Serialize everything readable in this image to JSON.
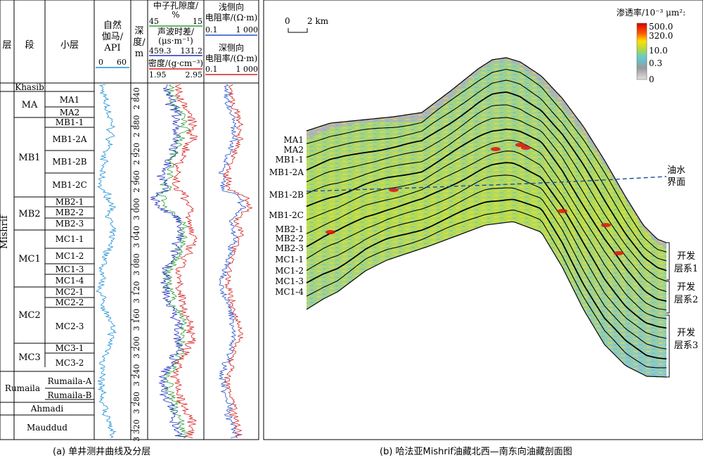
{
  "panel_a": {
    "caption": "(a) 单井测井曲线及分层",
    "headers": {
      "formation": "层",
      "member": "段",
      "sublayer": "小层",
      "gr_line1": "自然",
      "gr_line2": "伽马/",
      "gr_line3": "API",
      "gr_min": "0",
      "gr_max": "60",
      "depth_line1": "深",
      "depth_line2": "度/",
      "depth_line3": "m",
      "neutron_title": "中子孔隙度/",
      "neutron_unit": "%",
      "neutron_min": "45",
      "neutron_max": "15",
      "sonic_title": "声波时差/",
      "sonic_unit": "(μs·m⁻¹)",
      "sonic_min": "459.3",
      "sonic_max": "131.2",
      "density_title": "密度/(g·cm⁻³)",
      "density_min": "1.95",
      "density_max": "2.95",
      "shallow_res_line1": "浅侧向",
      "shallow_res_line2": "电阻率/(Ω·m)",
      "shallow_min": "0.1",
      "shallow_max": "1 000",
      "deep_res_line1": "深侧向",
      "deep_res_line2": "电阻率/(Ω·m)",
      "deep_min": "0.1",
      "deep_max": "1 000"
    },
    "formations": [
      {
        "name": "Khasib"
      },
      {
        "name": "Mishrif"
      },
      {
        "name": "Rumaila"
      },
      {
        "name": "Ahmadi"
      },
      {
        "name": "Mauddud"
      }
    ],
    "members": [
      "MA",
      "MB1",
      "MB2",
      "MC1",
      "MC2",
      "MC3"
    ],
    "sublayers": [
      "MA1",
      "MA2",
      "MB1-1",
      "MB1-2A",
      "MB1-2B",
      "MB1-2C",
      "MB2-1",
      "MB2-2",
      "MB2-3",
      "MC1-1",
      "MC1-2",
      "MC1-3",
      "MC1-4",
      "MC2-1",
      "MC2-2",
      "MC2-3",
      "MC3-1",
      "MC3-2",
      "Rumaila-A",
      "Rumaila-B"
    ],
    "depth_ticks": [
      "2 840",
      "2 880",
      "2 920",
      "2 960",
      "3 000",
      "3 040",
      "3 080",
      "3 120",
      "3 160",
      "3 200",
      "3 240",
      "3 280",
      "3 320"
    ],
    "curve_colors": {
      "gr": "#1a8fd6",
      "neutron": "#2e9e3a",
      "sonic": "#2030c0",
      "density": "#d62020",
      "shallow": "#2050d0",
      "deep": "#d02020"
    }
  },
  "panel_b": {
    "caption": "(b) 哈法亚Mishrif油藏北西—南东向油藏剖面图",
    "scale_left": "0",
    "scale_right": "2 km",
    "legend_title": "渗透率/10⁻³ μm²:",
    "legend_ticks": [
      "500.0",
      "320.0",
      "10.0",
      "0.3",
      "0"
    ],
    "legend_colors": [
      "#d80000",
      "#ff8000",
      "#ffe000",
      "#a8d850",
      "#60c8d8",
      "#a0a0a0",
      "#d8d8d8"
    ],
    "layer_labels": [
      "MA1",
      "MA2",
      "MB1-1",
      "MB1-2A",
      "MB1-2B",
      "MB1-2C",
      "MB2-1",
      "MB2-2",
      "MB2-3",
      "MC1-1",
      "MC1-2",
      "MC1-3",
      "MC1-4"
    ],
    "owc_line1": "油水",
    "owc_line2": "界面",
    "dev_systems": [
      {
        "line1": "开发",
        "line2": "层系1"
      },
      {
        "line1": "开发",
        "line2": "层系2"
      },
      {
        "line1": "开发",
        "line2": "层系3"
      }
    ]
  }
}
